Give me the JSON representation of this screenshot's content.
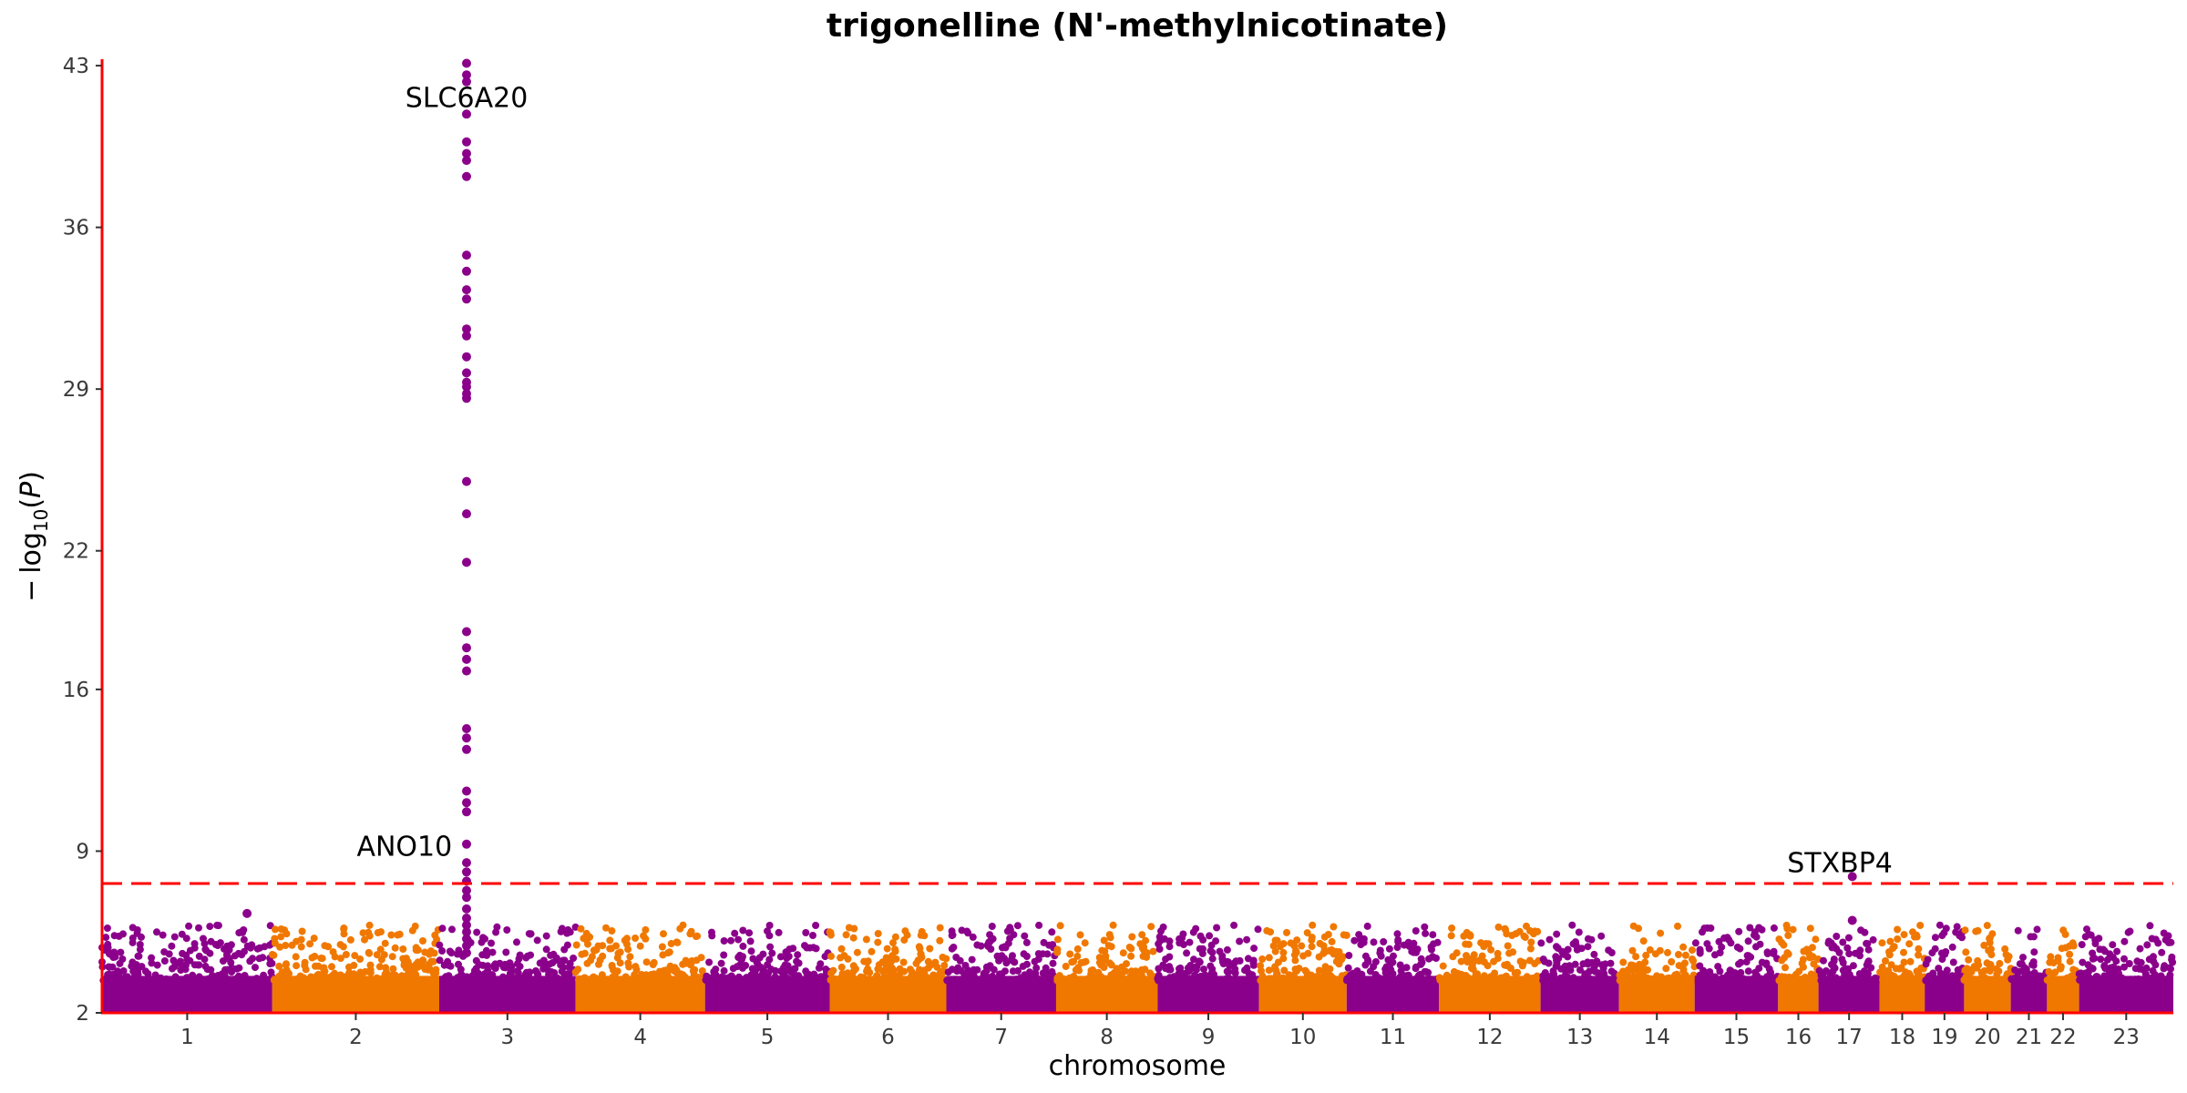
{
  "chart_data": {
    "type": "scatter",
    "title": "trigonelline (N'-methylnicotinate)",
    "xlabel": "chromosome",
    "ylabel": "−log10(P)",
    "ylim": [
      2,
      43.2
    ],
    "yticks": [
      "2",
      "9",
      "16",
      "22",
      "29",
      "36",
      "43"
    ],
    "significance_threshold": 7.6,
    "colors": {
      "odd": "#8b008b",
      "even": "#f07800",
      "axis": "#ff0000",
      "threshold": "#ff0000"
    },
    "chromosomes": [
      {
        "label": "1",
        "start": 0,
        "size": 0.0822
      },
      {
        "label": "2",
        "start": 0.0822,
        "size": 0.0806
      },
      {
        "label": "3",
        "start": 0.1628,
        "size": 0.0658
      },
      {
        "label": "4",
        "start": 0.2286,
        "size": 0.0625
      },
      {
        "label": "5",
        "start": 0.2911,
        "size": 0.0602
      },
      {
        "label": "6",
        "start": 0.3513,
        "size": 0.0563
      },
      {
        "label": "7",
        "start": 0.4076,
        "size": 0.053
      },
      {
        "label": "8",
        "start": 0.4606,
        "size": 0.049
      },
      {
        "label": "9",
        "start": 0.5096,
        "size": 0.049
      },
      {
        "label": "10",
        "start": 0.5586,
        "size": 0.0423
      },
      {
        "label": "11",
        "start": 0.6009,
        "size": 0.0446
      },
      {
        "label": "12",
        "start": 0.6455,
        "size": 0.049
      },
      {
        "label": "13",
        "start": 0.6945,
        "size": 0.0379
      },
      {
        "label": "14",
        "start": 0.7324,
        "size": 0.0365
      },
      {
        "label": "15",
        "start": 0.7689,
        "size": 0.0403
      },
      {
        "label": "16",
        "start": 0.8092,
        "size": 0.0195
      },
      {
        "label": "17",
        "start": 0.8287,
        "size": 0.0295
      },
      {
        "label": "18",
        "start": 0.8582,
        "size": 0.0218
      },
      {
        "label": "19",
        "start": 0.88,
        "size": 0.019
      },
      {
        "label": "20",
        "start": 0.899,
        "size": 0.0225
      },
      {
        "label": "21",
        "start": 0.9215,
        "size": 0.0175
      },
      {
        "label": "22",
        "start": 0.939,
        "size": 0.0155
      },
      {
        "label": "23",
        "start": 0.9545,
        "size": 0.0455
      }
    ],
    "peak_points": [
      {
        "chr": "3",
        "pos": 0.176,
        "values": [
          43.1,
          42.6,
          42.3,
          40.9,
          39.7,
          39.2,
          38.9,
          38.2,
          34.8,
          34.1,
          33.3,
          32.9,
          31.6,
          31.3,
          30.4,
          29.7,
          29.3,
          29.1,
          28.8,
          28.6,
          25.0,
          23.6,
          21.5,
          18.5,
          17.8,
          17.3,
          16.8,
          14.3,
          13.9,
          13.4,
          11.6,
          11.1,
          10.7,
          9.3,
          8.5,
          8.1,
          7.7,
          7.3,
          7.0,
          6.5,
          6.1,
          5.8,
          5.5,
          5.2,
          4.9,
          4.6
        ]
      },
      {
        "chr": "17",
        "pos": 0.845,
        "values": [
          7.9,
          6.0
        ]
      },
      {
        "chr": "1",
        "pos": 0.07,
        "values": [
          6.3
        ]
      }
    ],
    "annotations": [
      {
        "label": "SLC6A20",
        "chr": "3",
        "pos": 0.176,
        "y": 41.2
      },
      {
        "label": "ANO10",
        "chr": "3",
        "pos": 0.146,
        "y": 8.8
      },
      {
        "label": "STXBP4",
        "chr": "17",
        "pos": 0.839,
        "y": 8.1
      }
    ]
  }
}
